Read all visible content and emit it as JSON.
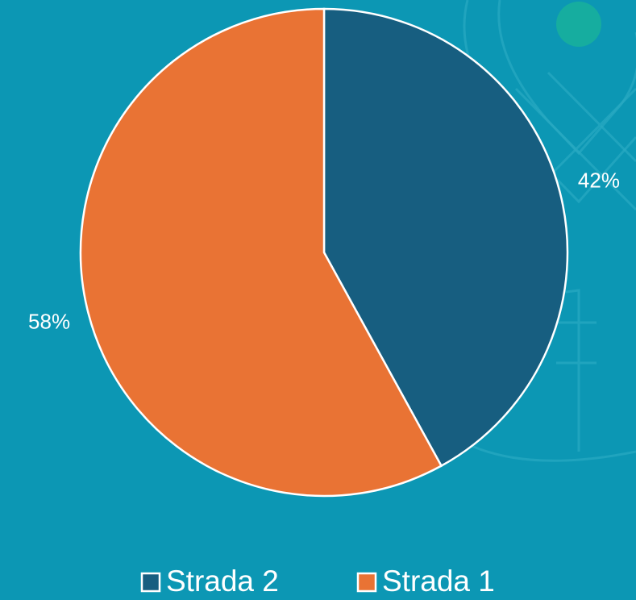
{
  "chart_data": {
    "type": "pie",
    "categories": [
      "Strada 2",
      "Strada 1"
    ],
    "values": [
      42,
      58
    ],
    "value_labels": [
      "42%",
      "58%"
    ],
    "colors": [
      "#175e80",
      "#e97334"
    ],
    "legend": "bottom"
  }
}
